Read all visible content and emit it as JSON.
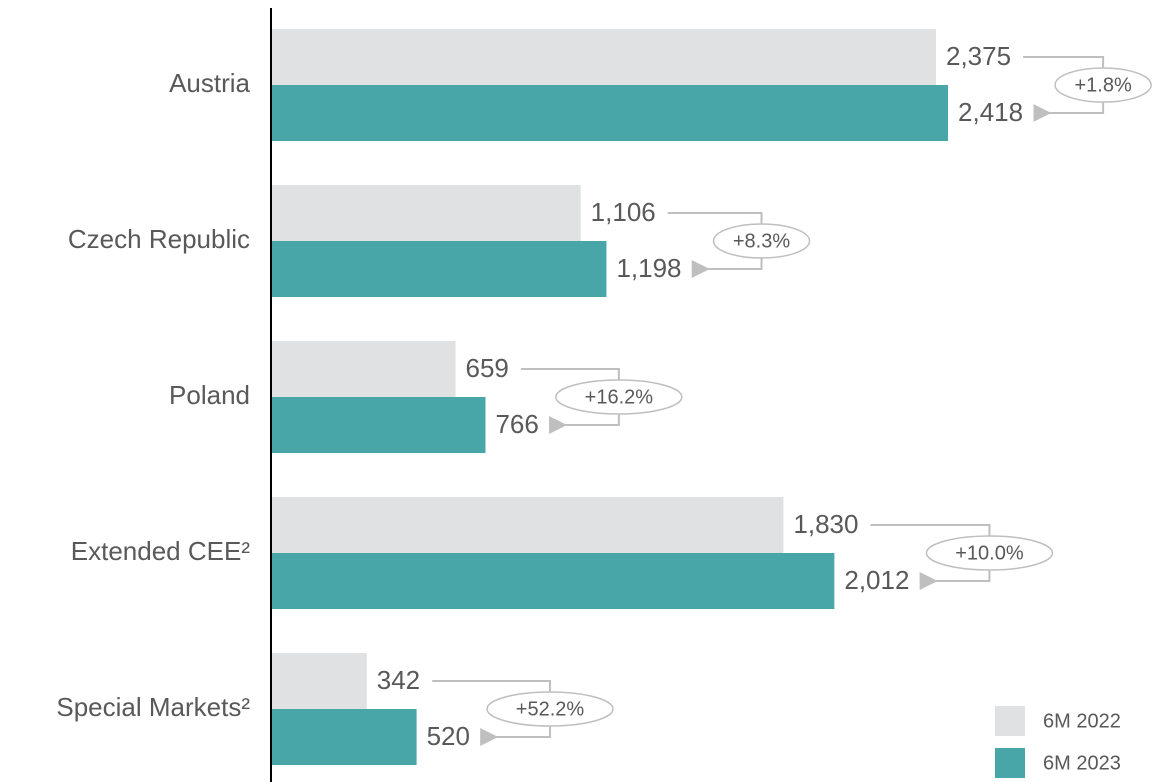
{
  "chart_data": {
    "type": "bar",
    "orientation": "horizontal",
    "categories": [
      "Austria",
      "Czech Republic",
      "Poland",
      "Extended CEE²",
      "Special Markets²"
    ],
    "series": [
      {
        "name": "6M 2022",
        "color": "#dfe1e3",
        "values": [
          2375,
          1106,
          659,
          1830,
          342
        ],
        "value_labels": [
          "2,375",
          "1,106",
          "659",
          "1,830",
          "342"
        ]
      },
      {
        "name": "6M 2023",
        "color": "#48a6a9",
        "values": [
          2418,
          1198,
          766,
          2012,
          520
        ],
        "value_labels": [
          "2,418",
          "1,198",
          "766",
          "2,012",
          "520"
        ]
      }
    ],
    "annotations": [
      "+1.8%",
      "+8.3%",
      "+16.2%",
      "+10.0%",
      "+52.2%"
    ],
    "legend": "bottom-right"
  }
}
